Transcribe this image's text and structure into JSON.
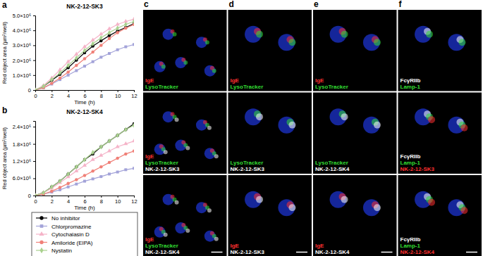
{
  "chart_data": [
    {
      "type": "line",
      "title": "NK-2-12-SK3",
      "annotations": [
        "a"
      ],
      "x_label": "Time (h)",
      "y_label": "Red object area (µm²/well)",
      "x": [
        0,
        1,
        2,
        3,
        4,
        5,
        6,
        7,
        8,
        9,
        10,
        11,
        12
      ],
      "xlim": [
        0,
        12
      ],
      "xticks": [
        0,
        2,
        4,
        6,
        8,
        10,
        12
      ],
      "ylim": [
        0,
        5000000
      ],
      "yticks": [
        0,
        {
          "value": 1000000,
          "label": "1.0×10⁶"
        },
        {
          "value": 2000000,
          "label": "2.0×10⁶"
        },
        {
          "value": 3000000,
          "label": "3.0×10⁶"
        },
        {
          "value": 4000000,
          "label": "4.0×10⁶"
        },
        {
          "value": 5000000,
          "label": "5.0×10⁶"
        }
      ],
      "grid": false,
      "series": [
        {
          "name": "No inhibitor",
          "color": "#000000",
          "marker": "circle",
          "values": [
            0,
            250000,
            650000,
            1050000,
            1500000,
            2000000,
            2500000,
            2950000,
            3300000,
            3650000,
            3950000,
            4200000,
            4450000
          ]
        },
        {
          "name": "Chlorpromazine",
          "color": "#a3a3d9",
          "marker": "square",
          "values": [
            0,
            150000,
            400000,
            700000,
            1000000,
            1300000,
            1600000,
            1900000,
            2200000,
            2450000,
            2700000,
            2900000,
            3050000
          ]
        },
        {
          "name": "Cytochalasin D",
          "color": "#f5b3c8",
          "marker": "triangle",
          "values": [
            0,
            300000,
            800000,
            1350000,
            1900000,
            2400000,
            2900000,
            3350000,
            3750000,
            4100000,
            4400000,
            4600000,
            4750000
          ]
        },
        {
          "name": "Amiloride (EIPA)",
          "color": "#f08078",
          "marker": "circle",
          "values": [
            0,
            150000,
            450000,
            800000,
            1200000,
            1650000,
            2100000,
            2550000,
            3000000,
            3450000,
            3850000,
            4150000,
            4400000
          ]
        },
        {
          "name": "Nystatin",
          "color": "#a9d18e",
          "marker": "diamond",
          "values": [
            0,
            250000,
            700000,
            1150000,
            1650000,
            2150000,
            2650000,
            3100000,
            3500000,
            3850000,
            4150000,
            4400000,
            4600000
          ]
        }
      ]
    },
    {
      "type": "line",
      "title": "NK-2-12-SK4",
      "annotations": [
        "b"
      ],
      "x_label": "Time (h)",
      "y_label": "Red object area (µm²/well)",
      "x": [
        0,
        1,
        2,
        3,
        4,
        5,
        6,
        7,
        8,
        9,
        10,
        11,
        12
      ],
      "xlim": [
        0,
        12
      ],
      "xticks": [
        0,
        2,
        4,
        6,
        8,
        10,
        12
      ],
      "ylim": [
        0,
        2600000
      ],
      "yticks": [
        0,
        {
          "value": 600000,
          "label": "6.0×10⁵"
        },
        {
          "value": 1200000,
          "label": "1.2×10⁶"
        },
        {
          "value": 1800000,
          "label": "1.8×10⁶"
        },
        {
          "value": 2400000,
          "label": "2.4×10⁶"
        }
      ],
      "grid": false,
      "legend": "below",
      "series": [
        {
          "name": "No inhibitor",
          "color": "#000000",
          "marker": "circle",
          "values": [
            0,
            100000,
            300000,
            500000,
            750000,
            1000000,
            1250000,
            1450000,
            1700000,
            1900000,
            2100000,
            2300000,
            2500000
          ]
        },
        {
          "name": "Chlorpromazine",
          "color": "#a3a3d9",
          "marker": "square",
          "values": [
            0,
            50000,
            120000,
            200000,
            300000,
            400000,
            500000,
            580000,
            660000,
            750000,
            820000,
            900000,
            950000
          ]
        },
        {
          "name": "Cytochalasin D",
          "color": "#f5b3c8",
          "marker": "triangle",
          "values": [
            0,
            100000,
            250000,
            450000,
            650000,
            850000,
            1050000,
            1250000,
            1400000,
            1550000,
            1700000,
            1800000,
            1900000
          ]
        },
        {
          "name": "Amiloride (EIPA)",
          "color": "#f08078",
          "marker": "circle",
          "values": [
            0,
            50000,
            150000,
            280000,
            420000,
            550000,
            700000,
            850000,
            1000000,
            1150000,
            1300000,
            1450000,
            1550000
          ]
        },
        {
          "name": "Nystatin",
          "color": "#a9d18e",
          "marker": "diamond",
          "values": [
            0,
            100000,
            300000,
            500000,
            750000,
            1000000,
            1250000,
            1500000,
            1700000,
            1900000,
            2100000,
            2300000,
            2450000
          ]
        }
      ]
    }
  ],
  "micrographs": {
    "columns": [
      {
        "label": "c",
        "rows": [
          {
            "stains": [
              {
                "text": "IgE",
                "color": "#ff3030"
              },
              {
                "text": "LysoTracker",
                "color": "#33dd33"
              }
            ]
          },
          {
            "stains": [
              {
                "text": "IgE",
                "color": "#ff3030"
              },
              {
                "text": "LysoTracker",
                "color": "#33dd33"
              },
              {
                "text": "NK-2-12-SK3",
                "color": "#ffffff"
              }
            ]
          },
          {
            "stains": [
              {
                "text": "IgE",
                "color": "#ff3030"
              },
              {
                "text": "LysoTracker",
                "color": "#33dd33"
              },
              {
                "text": "NK-2-12-SK4",
                "color": "#ffffff"
              }
            ]
          }
        ]
      },
      {
        "label": "d",
        "rows": [
          {
            "stains": [
              {
                "text": "IgE",
                "color": "#ff3030"
              },
              {
                "text": "LysoTracker",
                "color": "#33dd33"
              }
            ]
          },
          {
            "stains": [
              {
                "text": "LysoTracker",
                "color": "#33dd33"
              },
              {
                "text": "NK-2-12-SK3",
                "color": "#ffffff"
              }
            ]
          },
          {
            "stains": [
              {
                "text": "IgE",
                "color": "#ff3030"
              },
              {
                "text": "NK-2-12-SK3",
                "color": "#ffffff"
              }
            ]
          }
        ]
      },
      {
        "label": "e",
        "rows": [
          {
            "stains": [
              {
                "text": "IgE",
                "color": "#ff3030"
              },
              {
                "text": "LysoTracker",
                "color": "#33dd33"
              }
            ]
          },
          {
            "stains": [
              {
                "text": "LysoTracker",
                "color": "#33dd33"
              },
              {
                "text": "NK-2-12-SK4",
                "color": "#ffffff"
              }
            ]
          },
          {
            "stains": [
              {
                "text": "IgE",
                "color": "#ff3030"
              },
              {
                "text": "NK-2-12-SK4",
                "color": "#ffffff"
              }
            ]
          }
        ]
      },
      {
        "label": "f",
        "rows": [
          {
            "stains": [
              {
                "text": "FcγRIIb",
                "color": "#ffffff"
              },
              {
                "text": "Lamp-1",
                "color": "#33dd33"
              }
            ]
          },
          {
            "stains": [
              {
                "text": "FcγRIIb",
                "color": "#ffffff"
              },
              {
                "text": "Lamp-1",
                "color": "#33dd33"
              },
              {
                "text": "NK-2-12-SK3",
                "color": "#ff3030"
              }
            ]
          },
          {
            "stains": [
              {
                "text": "FcγRIIb",
                "color": "#ffffff"
              },
              {
                "text": "Lamp-1",
                "color": "#33dd33"
              },
              {
                "text": "NK-2-12-SK4",
                "color": "#ff3030"
              }
            ]
          }
        ]
      }
    ]
  }
}
